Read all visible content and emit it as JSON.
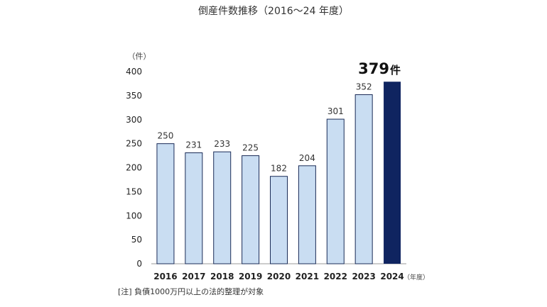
{
  "chart_data": {
    "type": "bar",
    "title": "倒産件数推移（2016～24 年度）",
    "ylabel": "（件）",
    "xlabel": "（年度）",
    "ylim": [
      0,
      400
    ],
    "yticks": [
      "0",
      "50",
      "100",
      "150",
      "200",
      "250",
      "300",
      "350",
      "400"
    ],
    "categories": [
      "2016",
      "2017",
      "2018",
      "2019",
      "2020",
      "2021",
      "2022",
      "2023",
      "2024"
    ],
    "values": [
      250,
      231,
      233,
      225,
      182,
      204,
      301,
      352,
      379
    ],
    "data_labels": [
      "250",
      "231",
      "233",
      "225",
      "182",
      "204",
      "301",
      "352",
      ""
    ],
    "highlight": {
      "index": 8,
      "value_text": "379",
      "unit_text": "件"
    },
    "colors": {
      "bar": "#c9ddf2",
      "bar_stroke": "#1a2b57",
      "highlight": "#0f2460"
    },
    "grid": false,
    "note": "[注] 負債1000万円以上の法的整理が対象"
  }
}
